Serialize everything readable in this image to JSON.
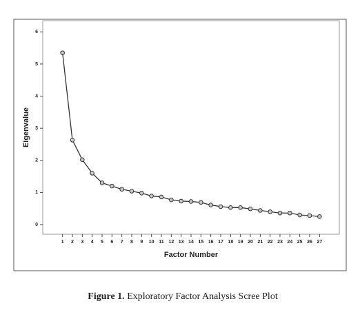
{
  "chart_data": {
    "type": "line",
    "x": [
      1,
      2,
      3,
      4,
      5,
      6,
      7,
      8,
      9,
      10,
      11,
      12,
      13,
      14,
      15,
      16,
      17,
      18,
      19,
      20,
      21,
      22,
      23,
      24,
      25,
      26,
      27
    ],
    "values": [
      5.35,
      2.63,
      2.02,
      1.6,
      1.3,
      1.2,
      1.1,
      1.04,
      0.98,
      0.89,
      0.86,
      0.77,
      0.73,
      0.72,
      0.69,
      0.61,
      0.56,
      0.53,
      0.53,
      0.49,
      0.44,
      0.4,
      0.36,
      0.36,
      0.3,
      0.28,
      0.25
    ],
    "color": "#333333",
    "marker_color": "#c8c8c8",
    "xlim": [
      -1,
      29
    ],
    "ylim": [
      -0.3,
      6.35
    ],
    "xticks": [
      1,
      2,
      3,
      4,
      5,
      6,
      7,
      8,
      9,
      10,
      11,
      12,
      13,
      14,
      15,
      16,
      17,
      18,
      19,
      20,
      21,
      22,
      23,
      24,
      25,
      26,
      27
    ],
    "yticks": [
      0,
      1,
      2,
      3,
      4,
      5,
      6
    ],
    "xlabel": "Factor Number",
    "ylabel": "Eigenvalue"
  },
  "caption": {
    "label": "Figure 1.",
    "text": "Exploratory Factor Analysis Scree Plot"
  }
}
